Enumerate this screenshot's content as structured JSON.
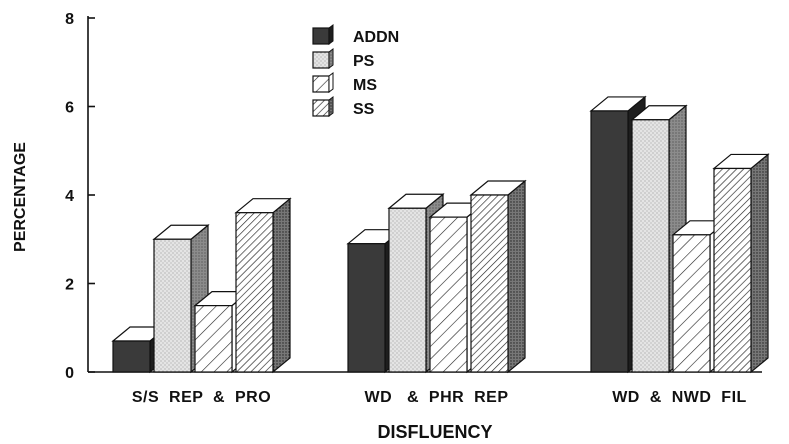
{
  "chart_data": {
    "type": "bar",
    "style": "3d-grouped",
    "title": "",
    "xlabel": "DISFLUENCY",
    "ylabel": "PERCENTAGE",
    "ylim": [
      0,
      8
    ],
    "yticks": [
      0,
      2,
      4,
      6,
      8
    ],
    "grid": false,
    "legend_position": "top-center",
    "categories": [
      "S/S  REP  &  PRO",
      "WD   &  PHR  REP",
      "WD  &  NWD  FIL"
    ],
    "series": [
      {
        "name": "ADDN",
        "pattern": "solid-dark",
        "values": [
          0.7,
          2.9,
          5.9
        ]
      },
      {
        "name": "PS",
        "pattern": "stipple",
        "values": [
          3.0,
          3.7,
          5.7
        ]
      },
      {
        "name": "MS",
        "pattern": "light-hatch",
        "values": [
          1.5,
          3.5,
          3.1
        ]
      },
      {
        "name": "SS",
        "pattern": "dense-hatch",
        "values": [
          3.6,
          4.0,
          4.6
        ]
      }
    ]
  }
}
